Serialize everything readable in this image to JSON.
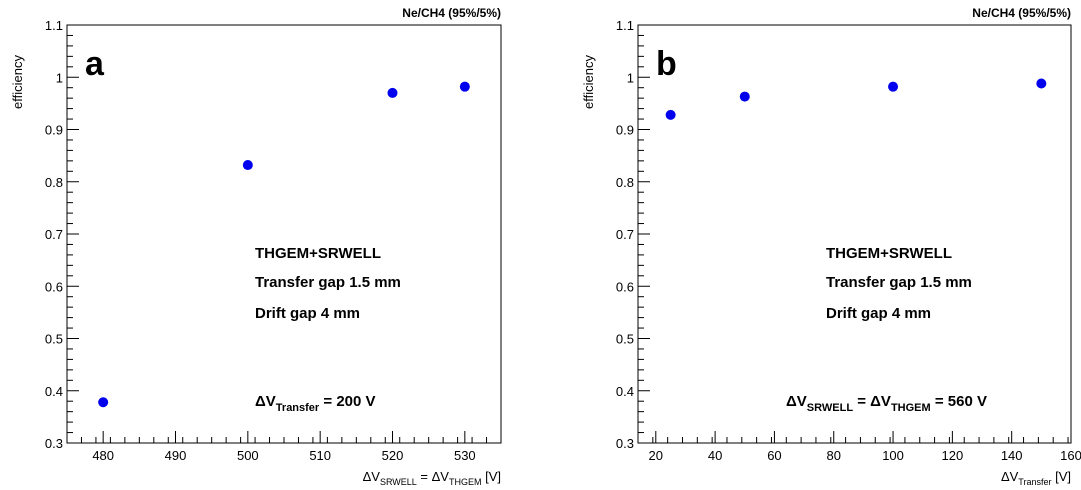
{
  "chart_data": [
    {
      "type": "scatter",
      "panel_label": "a",
      "gas_label": "Ne/CH4 (95%/5%)",
      "ylabel": "efficiency",
      "xlabel": {
        "pre": "ΔV",
        "sub1": "SRWELL",
        "mid": " = ΔV",
        "sub2": "THGEM",
        "post": " [V]"
      },
      "xlim": [
        475,
        535
      ],
      "ylim": [
        0.3,
        1.1
      ],
      "xticks_major": [
        480,
        490,
        500,
        510,
        520,
        530
      ],
      "xtick_labels": [
        "480",
        "490",
        "500",
        "510",
        "520",
        "530"
      ],
      "xtick_minor_step": 2,
      "yticks_major": [
        0.3,
        0.4,
        0.5,
        0.6,
        0.7,
        0.8,
        0.9,
        1.0,
        1.1
      ],
      "ytick_labels": [
        "0.3",
        "0.4",
        "0.5",
        "0.6",
        "0.7",
        "0.8",
        "0.9",
        "1",
        "1.1"
      ],
      "ytick_minor_step": 0.02,
      "x": [
        480,
        500,
        520,
        530
      ],
      "y": [
        0.378,
        0.832,
        0.97,
        0.982
      ],
      "color": "#0000ee",
      "annotations": [
        "THGEM+SRWELL",
        "Transfer gap 1.5 mm",
        "Drift gap 4 mm"
      ],
      "condition": {
        "pre": "ΔV",
        "sub": "Transfer",
        "post": " = 200 V"
      }
    },
    {
      "type": "scatter",
      "panel_label": "b",
      "gas_label": "Ne/CH4 (95%/5%)",
      "ylabel": "efficiency",
      "xlabel": {
        "pre": "ΔV",
        "sub1": "Transfer",
        "post": " [V]"
      },
      "xlim": [
        14,
        160
      ],
      "ylim": [
        0.3,
        1.1
      ],
      "xticks_major": [
        20,
        40,
        60,
        80,
        100,
        120,
        140,
        160
      ],
      "xtick_labels": [
        "20",
        "40",
        "60",
        "80",
        "100",
        "120",
        "140",
        "160"
      ],
      "xtick_minor_step": 5,
      "yticks_major": [
        0.3,
        0.4,
        0.5,
        0.6,
        0.7,
        0.8,
        0.9,
        1.0,
        1.1
      ],
      "ytick_labels": [
        "0.3",
        "0.4",
        "0.5",
        "0.6",
        "0.7",
        "0.8",
        "0.9",
        "1",
        "1.1"
      ],
      "ytick_minor_step": 0.02,
      "x": [
        25,
        50,
        100,
        150
      ],
      "y": [
        0.928,
        0.963,
        0.982,
        0.988
      ],
      "color": "#0000ee",
      "annotations": [
        "THGEM+SRWELL",
        "Transfer gap 1.5 mm",
        "Drift gap 4 mm"
      ],
      "condition": {
        "pre": "ΔV",
        "sub": "SRWELL",
        "mid": " = ΔV",
        "sub2": "THGEM",
        "post": " = 560 V"
      }
    }
  ]
}
